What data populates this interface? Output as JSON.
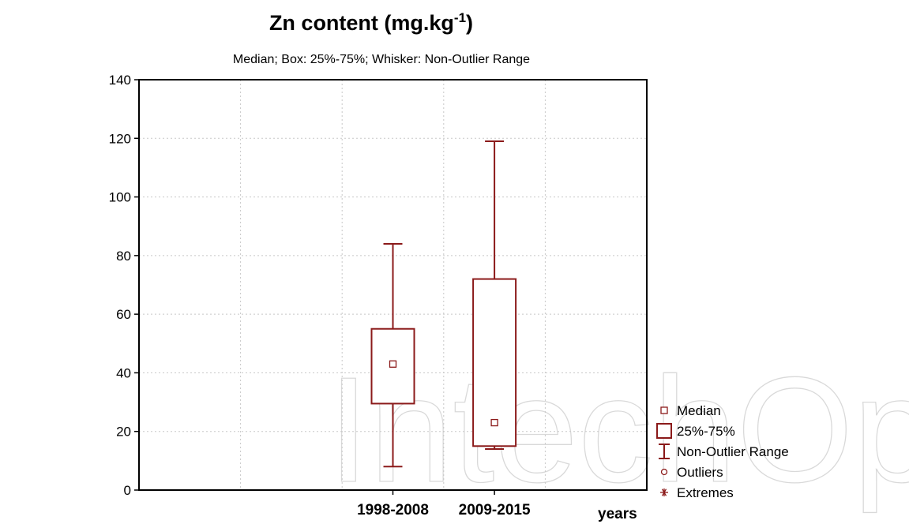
{
  "watermark": "IntechOpen",
  "chart_data": {
    "type": "box",
    "title": "Zn content (mg.kg",
    "title_superscript": "-1",
    "title_suffix": ")",
    "subtitle": "Median; Box: 25%-75%; Whisker: Non-Outlier Range",
    "xlabel": "years",
    "ylabel": "",
    "ylim": [
      0,
      140
    ],
    "yticks": [
      0,
      20,
      40,
      60,
      80,
      100,
      120,
      140
    ],
    "categories": [
      "1998-2008",
      "2009-2015"
    ],
    "boxes": [
      {
        "category": "1998-2008",
        "median": 43,
        "q1": 29.5,
        "q3": 55,
        "whisker_low": 8,
        "whisker_high": 84
      },
      {
        "category": "2009-2015",
        "median": 23,
        "q1": 15,
        "q3": 72,
        "whisker_low": 14,
        "whisker_high": 119
      }
    ],
    "grid": true,
    "legend_position": "right",
    "legend": [
      {
        "label": "Median",
        "symbol": "small-square"
      },
      {
        "label": "25%-75%",
        "symbol": "box"
      },
      {
        "label": "Non-Outlier Range",
        "symbol": "whisker"
      },
      {
        "label": "Outliers",
        "symbol": "circle"
      },
      {
        "label": "Extremes",
        "symbol": "asterisk"
      }
    ],
    "color": "#8b1a1a"
  }
}
